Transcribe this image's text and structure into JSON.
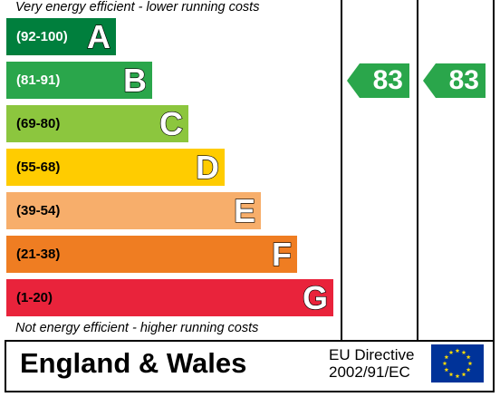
{
  "captions": {
    "top": "Very energy efficient - lower running costs",
    "bottom": "Not energy efficient - higher running costs"
  },
  "chart_data": {
    "type": "table",
    "bands": [
      {
        "letter": "A",
        "range": "(92-100)",
        "min": 92,
        "max": 100,
        "color": "#007f3d",
        "range_text_color": "#ffffff"
      },
      {
        "letter": "B",
        "range": "(81-91)",
        "min": 81,
        "max": 91,
        "color": "#2aa64b",
        "range_text_color": "#ffffff"
      },
      {
        "letter": "C",
        "range": "(69-80)",
        "min": 69,
        "max": 80,
        "color": "#8cc63e",
        "range_text_color": "#000000"
      },
      {
        "letter": "D",
        "range": "(55-68)",
        "min": 55,
        "max": 68,
        "color": "#ffcc00",
        "range_text_color": "#000000"
      },
      {
        "letter": "E",
        "range": "(39-54)",
        "min": 39,
        "max": 54,
        "color": "#f7ae6b",
        "range_text_color": "#000000"
      },
      {
        "letter": "F",
        "range": "(21-38)",
        "min": 21,
        "max": 38,
        "color": "#ef7d22",
        "range_text_color": "#000000"
      },
      {
        "letter": "G",
        "range": "(1-20)",
        "min": 1,
        "max": 20,
        "color": "#e9233b",
        "range_text_color": "#000000"
      }
    ],
    "ratings": {
      "current": {
        "value": 83,
        "band": "B",
        "color": "#2aa64b"
      },
      "potential": {
        "value": 83,
        "band": "B",
        "color": "#2aa64b"
      }
    }
  },
  "footer": {
    "title": "England & Wales",
    "directive_line1": "EU Directive",
    "directive_line2": "2002/91/EC",
    "flag_color": "#003399",
    "star_color": "#ffdd00"
  }
}
